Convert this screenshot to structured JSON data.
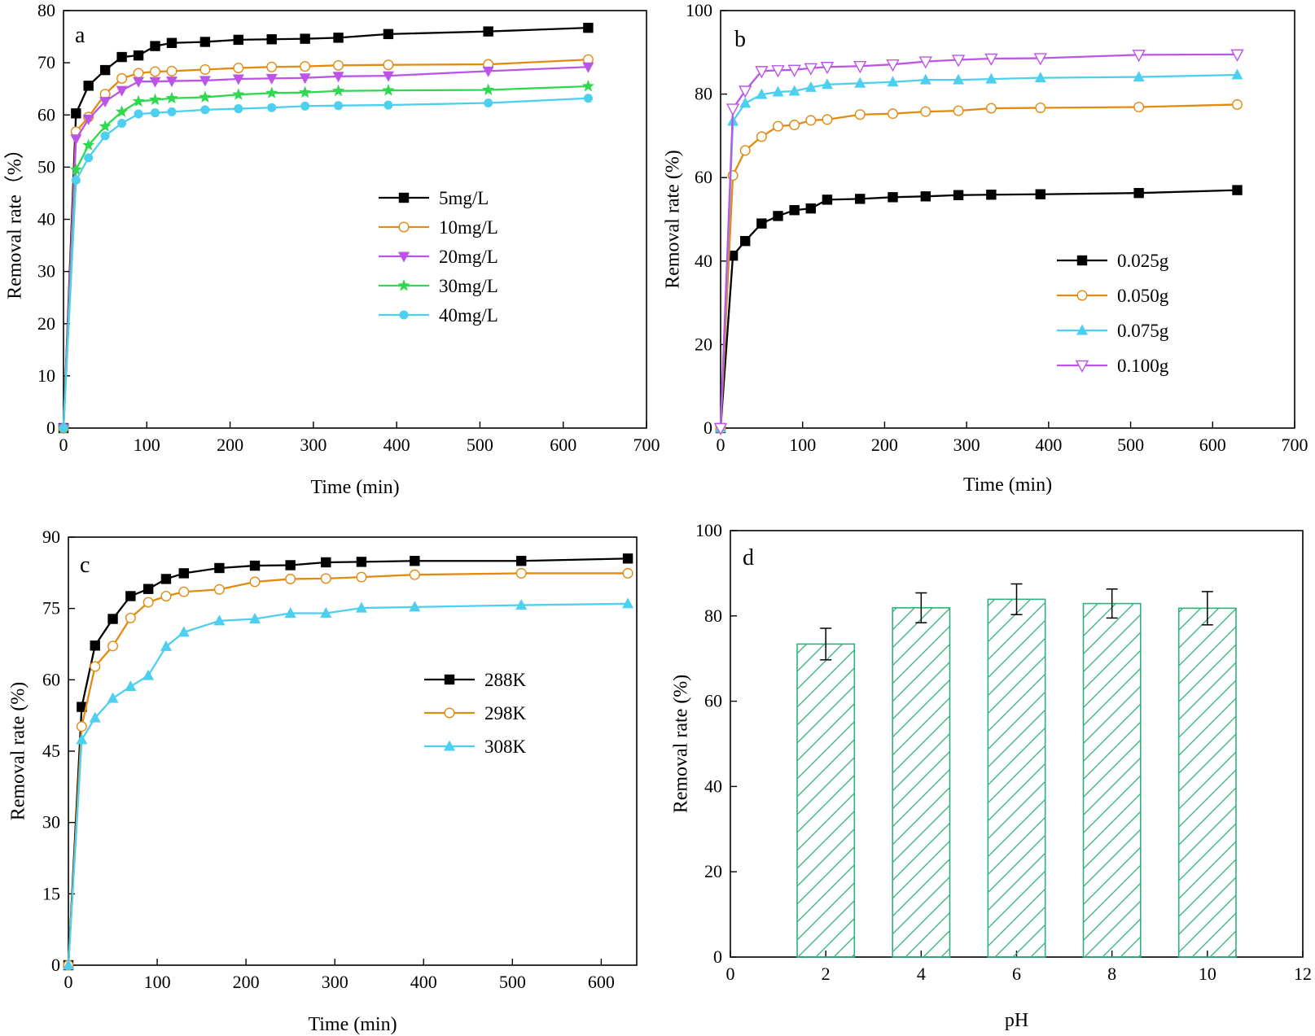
{
  "chart_data": [
    {
      "panel": "a",
      "type": "line",
      "xlabel": "Time (min)",
      "ylabel": "Removal rate（%）",
      "xlim": [
        0,
        700
      ],
      "ylim": [
        0,
        80
      ],
      "xticks": [
        0,
        100,
        200,
        300,
        400,
        500,
        600,
        700
      ],
      "yticks": [
        0,
        10,
        20,
        30,
        40,
        50,
        60,
        70,
        80
      ],
      "legend_position": "center-right",
      "x": [
        0,
        15,
        30,
        50,
        70,
        90,
        110,
        130,
        170,
        210,
        250,
        290,
        330,
        390,
        510,
        630
      ],
      "series": [
        {
          "name": "5mg/L",
          "color": "#000000",
          "marker": "square",
          "values": [
            0,
            60.3,
            65.6,
            68.6,
            71.1,
            71.4,
            73.2,
            73.8,
            74.0,
            74.4,
            74.5,
            74.6,
            74.8,
            75.5,
            76.0,
            76.7
          ]
        },
        {
          "name": "10mg/L",
          "color": "#e38a10",
          "marker": "circle-open",
          "values": [
            0,
            56.8,
            59.6,
            64.0,
            67.0,
            68.0,
            68.3,
            68.4,
            68.7,
            69.0,
            69.2,
            69.3,
            69.5,
            69.6,
            69.7,
            70.6
          ]
        },
        {
          "name": "20mg/L",
          "color": "#bb55e8",
          "marker": "triangle-down",
          "values": [
            0,
            55.4,
            59.2,
            62.6,
            64.7,
            66.4,
            66.4,
            66.5,
            66.6,
            66.9,
            67.0,
            67.1,
            67.4,
            67.5,
            68.4,
            69.2
          ]
        },
        {
          "name": "30mg/L",
          "color": "#2fd84f",
          "marker": "star",
          "values": [
            0,
            49.5,
            54.2,
            57.8,
            60.6,
            62.6,
            62.9,
            63.2,
            63.4,
            63.9,
            64.2,
            64.3,
            64.6,
            64.7,
            64.8,
            65.5
          ]
        },
        {
          "name": "40mg/L",
          "color": "#4dcff0",
          "marker": "circle",
          "values": [
            0,
            47.5,
            51.8,
            56.0,
            58.4,
            60.2,
            60.4,
            60.6,
            61.0,
            61.2,
            61.4,
            61.7,
            61.8,
            61.9,
            62.3,
            63.2
          ]
        }
      ]
    },
    {
      "panel": "b",
      "type": "line",
      "xlabel": "Time (min)",
      "ylabel": "Removal rate (%)",
      "xlim": [
        0,
        700
      ],
      "ylim": [
        0,
        100
      ],
      "xticks": [
        0,
        100,
        200,
        300,
        400,
        500,
        600,
        700
      ],
      "yticks": [
        0,
        20,
        40,
        60,
        80,
        100
      ],
      "legend_position": "center-right",
      "x": [
        0,
        15,
        30,
        50,
        70,
        90,
        110,
        130,
        170,
        210,
        250,
        290,
        330,
        390,
        510,
        630
      ],
      "series": [
        {
          "name": "0.025g",
          "color": "#000000",
          "marker": "square",
          "values": [
            0,
            41.3,
            44.8,
            49.0,
            50.8,
            52.2,
            52.6,
            54.7,
            54.9,
            55.3,
            55.5,
            55.8,
            55.9,
            56.0,
            56.3,
            57.0
          ]
        },
        {
          "name": "0.050g",
          "color": "#e38a10",
          "marker": "circle-open",
          "values": [
            0,
            60.5,
            66.5,
            69.8,
            72.3,
            72.6,
            73.7,
            73.9,
            75.1,
            75.3,
            75.8,
            76.0,
            76.6,
            76.7,
            76.9,
            77.5
          ]
        },
        {
          "name": "0.075g",
          "color": "#4dcff0",
          "marker": "triangle",
          "values": [
            0,
            73.5,
            77.8,
            79.9,
            80.5,
            80.7,
            81.6,
            82.3,
            82.6,
            82.9,
            83.4,
            83.4,
            83.6,
            83.9,
            84.1,
            84.6
          ]
        },
        {
          "name": "0.100g",
          "color": "#bb55e8",
          "marker": "triangle-down-open",
          "values": [
            0,
            76.5,
            80.8,
            85.5,
            85.7,
            85.8,
            86.2,
            86.5,
            86.7,
            87.1,
            87.8,
            88.2,
            88.5,
            88.6,
            89.4,
            89.5
          ]
        }
      ]
    },
    {
      "panel": "c",
      "type": "line",
      "xlabel": "Time (min)",
      "ylabel": "Removal rate (%)",
      "xlim": [
        0,
        640
      ],
      "ylim": [
        0,
        90
      ],
      "xticks": [
        0,
        100,
        200,
        300,
        400,
        500,
        600
      ],
      "yticks": [
        0,
        15,
        30,
        45,
        60,
        75,
        90
      ],
      "legend_position": "center",
      "x": [
        0,
        15,
        30,
        50,
        70,
        90,
        110,
        130,
        170,
        210,
        250,
        290,
        330,
        390,
        510,
        630
      ],
      "series": [
        {
          "name": "288K",
          "color": "#000000",
          "marker": "square",
          "values": [
            0,
            54.3,
            67.2,
            72.8,
            77.6,
            79.1,
            81.2,
            82.4,
            83.5,
            84.0,
            84.1,
            84.7,
            84.8,
            85.0,
            85.0,
            85.5
          ]
        },
        {
          "name": "298K",
          "color": "#e38a10",
          "marker": "circle-open",
          "values": [
            0,
            50.2,
            62.8,
            67.1,
            73.0,
            76.3,
            77.6,
            78.5,
            79.0,
            80.6,
            81.2,
            81.3,
            81.6,
            82.1,
            82.4,
            82.4
          ]
        },
        {
          "name": "308K",
          "color": "#4dcff0",
          "marker": "triangle",
          "values": [
            0,
            47.4,
            52.0,
            56.1,
            58.6,
            60.9,
            67.0,
            70.0,
            72.4,
            72.8,
            74.0,
            74.0,
            75.1,
            75.3,
            75.7,
            76.0
          ]
        }
      ]
    },
    {
      "panel": "d",
      "type": "bar",
      "xlabel": "pH",
      "ylabel": "Removal rate (%)",
      "xlim": [
        0,
        12
      ],
      "ylim": [
        0,
        100
      ],
      "xticks": [
        0,
        2,
        4,
        6,
        8,
        10,
        12
      ],
      "yticks": [
        0,
        20,
        40,
        60,
        80,
        100
      ],
      "bar_color": "#2fb07a",
      "categories": [
        2,
        4,
        6,
        8,
        10
      ],
      "values": [
        73.4,
        81.9,
        83.9,
        82.9,
        81.8
      ],
      "errors": [
        3.7,
        3.5,
        3.6,
        3.4,
        3.9
      ]
    }
  ]
}
